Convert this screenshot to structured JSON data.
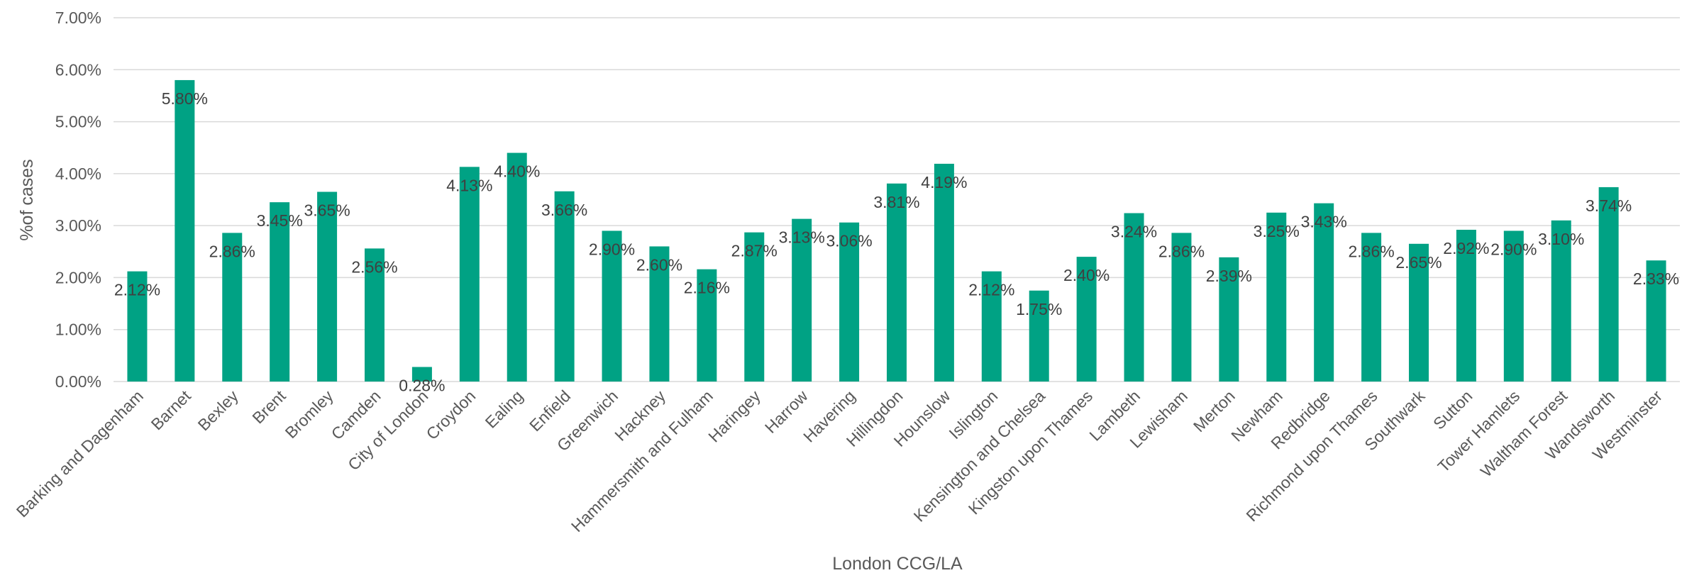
{
  "chart_data": {
    "type": "bar",
    "title": "",
    "xlabel": "London CCG/LA",
    "ylabel": "%of cases",
    "ylim": [
      0,
      7
    ],
    "y_tick_labels": [
      "0.00%",
      "1.00%",
      "2.00%",
      "3.00%",
      "4.00%",
      "5.00%",
      "6.00%",
      "7.00%"
    ],
    "y_ticks": [
      0,
      1,
      2,
      3,
      4,
      5,
      6,
      7
    ],
    "grid": true,
    "legend": "none",
    "bar_color": "#00A284",
    "categories": [
      "Barking and Dagenham",
      "Barnet",
      "Bexley",
      "Brent",
      "Bromley",
      "Camden",
      "City of London",
      "Croydon",
      "Ealing",
      "Enfield",
      "Greenwich",
      "Hackney",
      "Hammersmith and Fulham",
      "Haringey",
      "Harrow",
      "Havering",
      "Hillingdon",
      "Hounslow",
      "Islington",
      "Kensington and Chelsea",
      "Kingston upon Thames",
      "Lambeth",
      "Lewisham",
      "Merton",
      "Newham",
      "Redbridge",
      "Richmond upon Thames",
      "Southwark",
      "Sutton",
      "Tower Hamlets",
      "Waltham Forest",
      "Wandsworth",
      "Westminster"
    ],
    "values": [
      2.12,
      5.8,
      2.86,
      3.45,
      3.65,
      2.56,
      0.28,
      4.13,
      4.4,
      3.66,
      2.9,
      2.6,
      2.16,
      2.87,
      3.13,
      3.06,
      3.81,
      4.19,
      2.12,
      1.75,
      2.4,
      3.24,
      2.86,
      2.39,
      3.25,
      3.43,
      2.86,
      2.65,
      2.92,
      2.9,
      3.1,
      3.74,
      2.33
    ],
    "data_labels": [
      "2.12%",
      "5.80%",
      "2.86%",
      "3.45%",
      "3.65%",
      "2.56%",
      "0.28%",
      "4.13%",
      "4.40%",
      "3.66%",
      "2.90%",
      "2.60%",
      "2.16%",
      "2.87%",
      "3.13%",
      "3.06%",
      "3.81%",
      "4.19%",
      "2.12%",
      "1.75%",
      "2.40%",
      "3.24%",
      "2.86%",
      "2.39%",
      "3.25%",
      "3.43%",
      "2.86%",
      "2.65%",
      "2.92%",
      "2.90%",
      "3.10%",
      "3.74%",
      "2.33%"
    ]
  }
}
